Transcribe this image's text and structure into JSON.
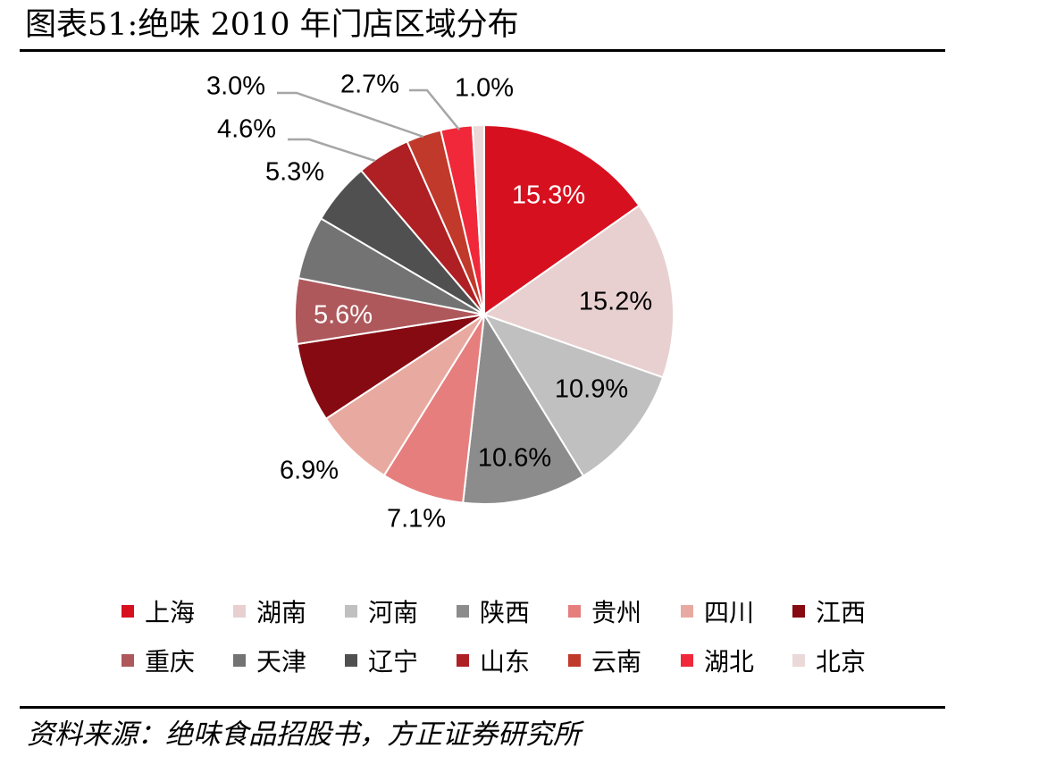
{
  "title": "图表51:绝味 2010 年门店区域分布",
  "source": "资料来源：绝味食品招股书，方正证券研究所",
  "chart_data": {
    "type": "pie",
    "slices": [
      {
        "name": "上海",
        "value": 15.3,
        "label": "15.3%",
        "color": "#D7101F",
        "label_color": "#ffffff"
      },
      {
        "name": "湖南",
        "value": 15.2,
        "label": "15.2%",
        "color": "#E8D0D0",
        "label_color": "#000000"
      },
      {
        "name": "河南",
        "value": 10.9,
        "label": "10.9%",
        "color": "#C0C0C0",
        "label_color": "#000000"
      },
      {
        "name": "陕西",
        "value": 10.6,
        "label": "10.6%",
        "color": "#8C8C8C",
        "label_color": "#000000"
      },
      {
        "name": "贵州",
        "value": 7.1,
        "label": "7.1%",
        "color": "#E67E7E",
        "label_color": "#000000"
      },
      {
        "name": "四川",
        "value": 6.9,
        "label": "6.9%",
        "color": "#E8AAA0",
        "label_color": "#000000"
      },
      {
        "name": "江西",
        "value": 6.8,
        "label": "",
        "color": "#850A12",
        "label_color": "#000000"
      },
      {
        "name": "重庆",
        "value": 5.6,
        "label": "5.6%",
        "color": "#AE585C",
        "label_color": "#ffffff"
      },
      {
        "name": "天津",
        "value": 5.4,
        "label": "",
        "color": "#737373",
        "label_color": "#000000"
      },
      {
        "name": "辽宁",
        "value": 5.3,
        "label": "5.3%",
        "color": "#505050",
        "label_color": "#000000"
      },
      {
        "name": "山东",
        "value": 4.6,
        "label": "4.6%",
        "color": "#AE2024",
        "label_color": "#000000"
      },
      {
        "name": "云南",
        "value": 3.0,
        "label": "3.0%",
        "color": "#C0392B",
        "label_color": "#000000"
      },
      {
        "name": "湖北",
        "value": 2.7,
        "label": "2.7%",
        "color": "#F0283A",
        "label_color": "#000000"
      },
      {
        "name": "北京",
        "value": 1.0,
        "label": "1.0%",
        "color": "#EBD8D8",
        "label_color": "#000000"
      }
    ],
    "legend_placement": "bottom"
  }
}
